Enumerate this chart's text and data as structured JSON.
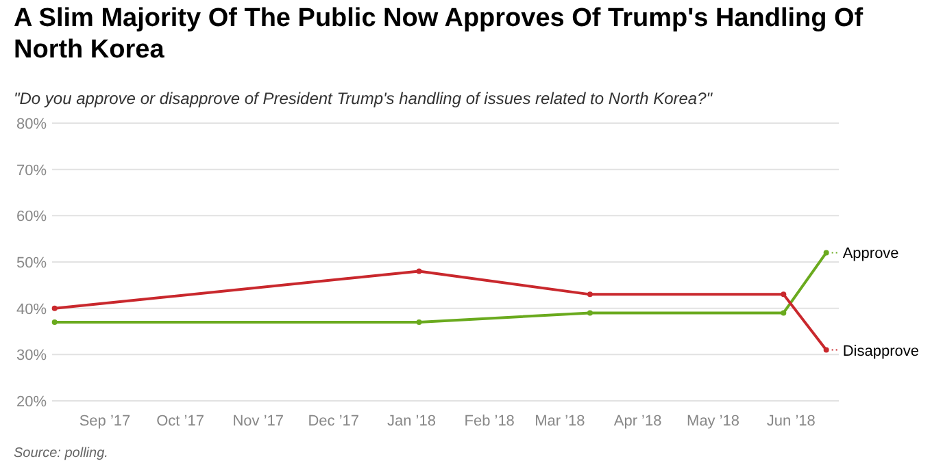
{
  "chart_data": {
    "type": "line",
    "title": "A Slim Majority Of The Public Now Approves Of Trump's Handling Of North Korea",
    "subtitle": "\"Do you approve or disapprove of President Trump's handling of issues related to North Korea?\"",
    "x": [
      "2017-08-12",
      "2018-01-04",
      "2018-03-13",
      "2018-05-29",
      "2018-06-15"
    ],
    "series": [
      {
        "name": "Approve",
        "color": "#6aaa1e",
        "values": [
          37,
          37,
          39,
          39,
          52
        ]
      },
      {
        "name": "Disapprove",
        "color": "#c9282d",
        "values": [
          40,
          48,
          43,
          43,
          31
        ]
      }
    ],
    "xlim": [
      "2017-08-11",
      "2018-06-20"
    ],
    "xticks": [
      {
        "value": "2017-09-01",
        "label": "Sep ’17"
      },
      {
        "value": "2017-10-01",
        "label": "Oct ’17"
      },
      {
        "value": "2017-11-01",
        "label": "Nov ’17"
      },
      {
        "value": "2017-12-01",
        "label": "Dec ’17"
      },
      {
        "value": "2018-01-01",
        "label": "Jan ’18"
      },
      {
        "value": "2018-02-01",
        "label": "Feb ’18"
      },
      {
        "value": "2018-03-01",
        "label": "Mar ’18"
      },
      {
        "value": "2018-04-01",
        "label": "Apr ’18"
      },
      {
        "value": "2018-05-01",
        "label": "May ’18"
      },
      {
        "value": "2018-06-01",
        "label": "Jun ’18"
      }
    ],
    "ylim": [
      20,
      80
    ],
    "yticks": [
      {
        "value": 20,
        "label": "20%"
      },
      {
        "value": 30,
        "label": "30%"
      },
      {
        "value": 40,
        "label": "40%"
      },
      {
        "value": 50,
        "label": "50%"
      },
      {
        "value": 60,
        "label": "60%"
      },
      {
        "value": 70,
        "label": "70%"
      },
      {
        "value": 80,
        "label": "80%"
      }
    ],
    "grid": "y",
    "legend": "right",
    "marker": "circle",
    "line_style": "solid",
    "annotations": [
      "Source: polling."
    ]
  }
}
